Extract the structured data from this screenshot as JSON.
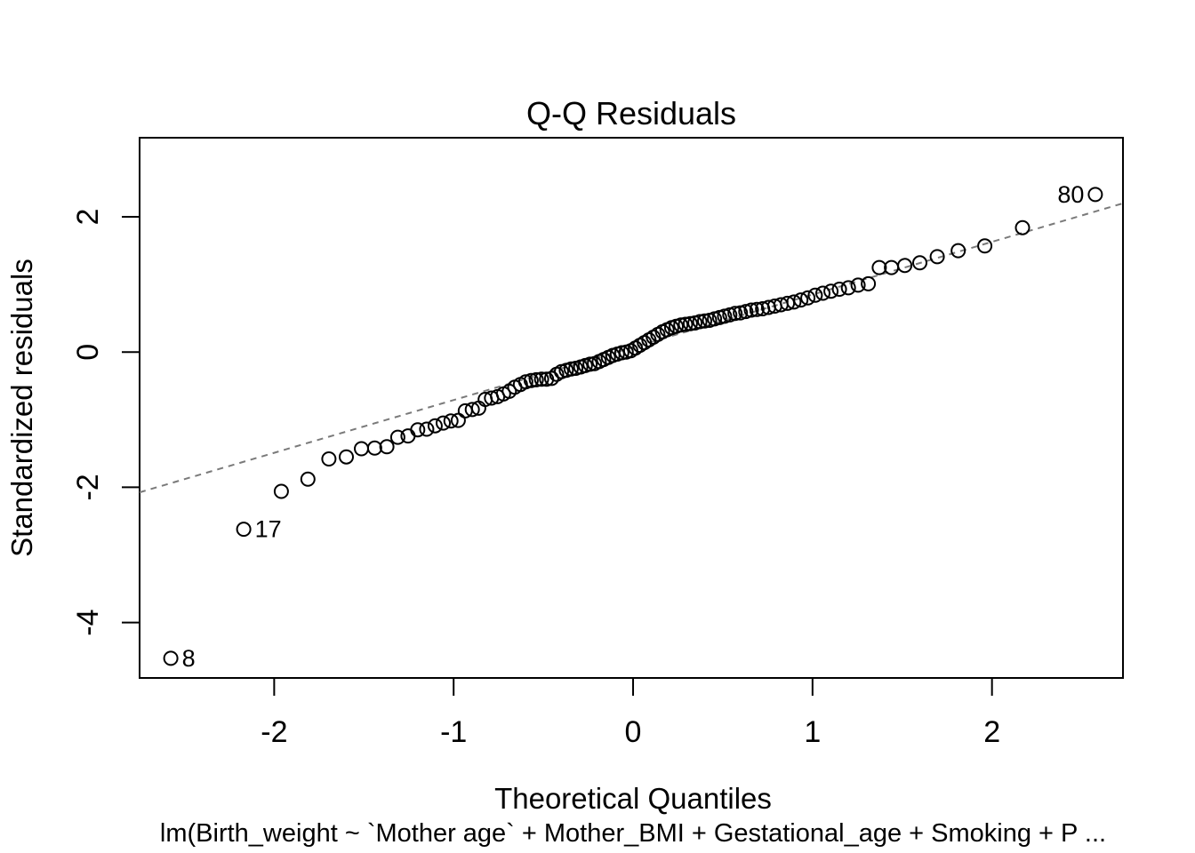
{
  "chart_data": {
    "type": "scatter",
    "title": "Q-Q Residuals",
    "xlabel": "Theoretical Quantiles",
    "ylabel": "Standardized residuals",
    "subtitle": "lm(Birth_weight ~ `Mother age` + Mother_BMI + Gestational_age + Smoking + P ...",
    "xlim": [
      -2.75,
      2.73
    ],
    "ylim": [
      -4.82,
      3.17
    ],
    "x_ticks": [
      -2,
      -1,
      0,
      1,
      2
    ],
    "y_ticks": [
      -4,
      -2,
      0,
      2
    ],
    "grid": false,
    "legend": null,
    "marker": {
      "shape": "open-circle",
      "color": "#000000"
    },
    "reference_line": {
      "type": "qqline",
      "intercept": 0.07,
      "slope": 0.78,
      "style": "dashed",
      "color": "#7a7a7a"
    },
    "points": [
      {
        "x": -2.576,
        "y": -4.53,
        "label": "8",
        "label_side": "right"
      },
      {
        "x": -2.17,
        "y": -2.62,
        "label": "17",
        "label_side": "right"
      },
      {
        "x": -1.96,
        "y": -2.06
      },
      {
        "x": -1.812,
        "y": -1.88
      },
      {
        "x": -1.695,
        "y": -1.58
      },
      {
        "x": -1.598,
        "y": -1.55
      },
      {
        "x": -1.514,
        "y": -1.43
      },
      {
        "x": -1.44,
        "y": -1.42
      },
      {
        "x": -1.372,
        "y": -1.4
      },
      {
        "x": -1.311,
        "y": -1.26
      },
      {
        "x": -1.254,
        "y": -1.24
      },
      {
        "x": -1.2,
        "y": -1.15
      },
      {
        "x": -1.15,
        "y": -1.14
      },
      {
        "x": -1.103,
        "y": -1.09
      },
      {
        "x": -1.058,
        "y": -1.05
      },
      {
        "x": -1.015,
        "y": -1.02
      },
      {
        "x": -0.974,
        "y": -1.01
      },
      {
        "x": -0.935,
        "y": -0.87
      },
      {
        "x": -0.896,
        "y": -0.85
      },
      {
        "x": -0.86,
        "y": -0.83
      },
      {
        "x": -0.824,
        "y": -0.7
      },
      {
        "x": -0.789,
        "y": -0.68
      },
      {
        "x": -0.755,
        "y": -0.66
      },
      {
        "x": -0.722,
        "y": -0.62
      },
      {
        "x": -0.69,
        "y": -0.58
      },
      {
        "x": -0.659,
        "y": -0.52
      },
      {
        "x": -0.628,
        "y": -0.48
      },
      {
        "x": -0.598,
        "y": -0.44
      },
      {
        "x": -0.568,
        "y": -0.42
      },
      {
        "x": -0.539,
        "y": -0.41
      },
      {
        "x": -0.51,
        "y": -0.4
      },
      {
        "x": -0.482,
        "y": -0.4
      },
      {
        "x": -0.454,
        "y": -0.39
      },
      {
        "x": -0.426,
        "y": -0.33
      },
      {
        "x": -0.399,
        "y": -0.29
      },
      {
        "x": -0.372,
        "y": -0.27
      },
      {
        "x": -0.345,
        "y": -0.25
      },
      {
        "x": -0.319,
        "y": -0.24
      },
      {
        "x": -0.292,
        "y": -0.22
      },
      {
        "x": -0.266,
        "y": -0.2
      },
      {
        "x": -0.24,
        "y": -0.18
      },
      {
        "x": -0.215,
        "y": -0.17
      },
      {
        "x": -0.189,
        "y": -0.14
      },
      {
        "x": -0.164,
        "y": -0.11
      },
      {
        "x": -0.138,
        "y": -0.08
      },
      {
        "x": -0.113,
        "y": -0.05
      },
      {
        "x": -0.088,
        "y": -0.03
      },
      {
        "x": -0.063,
        "y": -0.01
      },
      {
        "x": -0.038,
        "y": 0.0
      },
      {
        "x": -0.013,
        "y": 0.02
      },
      {
        "x": 0.013,
        "y": 0.06
      },
      {
        "x": 0.038,
        "y": 0.1
      },
      {
        "x": 0.063,
        "y": 0.14
      },
      {
        "x": 0.088,
        "y": 0.18
      },
      {
        "x": 0.113,
        "y": 0.22
      },
      {
        "x": 0.138,
        "y": 0.26
      },
      {
        "x": 0.164,
        "y": 0.3
      },
      {
        "x": 0.189,
        "y": 0.33
      },
      {
        "x": 0.215,
        "y": 0.36
      },
      {
        "x": 0.24,
        "y": 0.38
      },
      {
        "x": 0.266,
        "y": 0.4
      },
      {
        "x": 0.292,
        "y": 0.41
      },
      {
        "x": 0.319,
        "y": 0.42
      },
      {
        "x": 0.345,
        "y": 0.43
      },
      {
        "x": 0.372,
        "y": 0.45
      },
      {
        "x": 0.399,
        "y": 0.46
      },
      {
        "x": 0.426,
        "y": 0.47
      },
      {
        "x": 0.454,
        "y": 0.49
      },
      {
        "x": 0.482,
        "y": 0.51
      },
      {
        "x": 0.51,
        "y": 0.53
      },
      {
        "x": 0.539,
        "y": 0.55
      },
      {
        "x": 0.568,
        "y": 0.57
      },
      {
        "x": 0.598,
        "y": 0.58
      },
      {
        "x": 0.628,
        "y": 0.6
      },
      {
        "x": 0.659,
        "y": 0.62
      },
      {
        "x": 0.69,
        "y": 0.63
      },
      {
        "x": 0.722,
        "y": 0.64
      },
      {
        "x": 0.755,
        "y": 0.66
      },
      {
        "x": 0.789,
        "y": 0.68
      },
      {
        "x": 0.824,
        "y": 0.7
      },
      {
        "x": 0.86,
        "y": 0.72
      },
      {
        "x": 0.896,
        "y": 0.74
      },
      {
        "x": 0.935,
        "y": 0.77
      },
      {
        "x": 0.974,
        "y": 0.8
      },
      {
        "x": 1.015,
        "y": 0.84
      },
      {
        "x": 1.058,
        "y": 0.87
      },
      {
        "x": 1.103,
        "y": 0.9
      },
      {
        "x": 1.15,
        "y": 0.93
      },
      {
        "x": 1.2,
        "y": 0.95
      },
      {
        "x": 1.254,
        "y": 0.99
      },
      {
        "x": 1.311,
        "y": 1.01
      },
      {
        "x": 1.372,
        "y": 1.25
      },
      {
        "x": 1.44,
        "y": 1.25
      },
      {
        "x": 1.514,
        "y": 1.28
      },
      {
        "x": 1.598,
        "y": 1.32
      },
      {
        "x": 1.695,
        "y": 1.41
      },
      {
        "x": 1.812,
        "y": 1.5
      },
      {
        "x": 1.96,
        "y": 1.57
      },
      {
        "x": 2.17,
        "y": 1.84
      },
      {
        "x": 2.576,
        "y": 2.33,
        "label": "80",
        "label_side": "left"
      }
    ]
  }
}
